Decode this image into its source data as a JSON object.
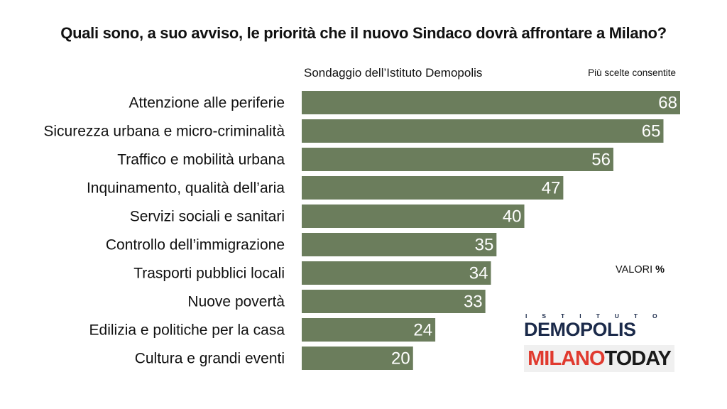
{
  "title": "Quali sono, a suo avviso, le priorità che il nuovo Sindaco dovrà affrontare a Milano?",
  "subtitle": "Sondaggio dell’Istituto Demopolis",
  "note": "Più scelte consentite",
  "units_prefix": "VALORI",
  "units_symbol": "%",
  "logos": {
    "demopolis_top": "ISTITUTO",
    "demopolis_main": "DEMOPOLIS",
    "milano_red": "MILANO",
    "milano_dark": "TODAY"
  },
  "colors": {
    "bar": "#6b7d5c",
    "value_text": "#ffffff"
  },
  "chart_data": {
    "type": "bar",
    "orientation": "horizontal",
    "categories": [
      "Attenzione alle periferie",
      "Sicurezza urbana e micro-criminalità",
      "Traffico e mobilità urbana",
      "Inquinamento, qualità dell’aria",
      "Servizi sociali e sanitari",
      "Controllo dell’immigrazione",
      "Trasporti pubblici locali",
      "Nuove povertà",
      "Edilizia e politiche per la casa",
      "Cultura e grandi eventi"
    ],
    "values": [
      68,
      65,
      56,
      47,
      40,
      35,
      34,
      33,
      24,
      20
    ],
    "xlim": [
      0,
      68
    ],
    "grid": false,
    "legend": "none"
  }
}
